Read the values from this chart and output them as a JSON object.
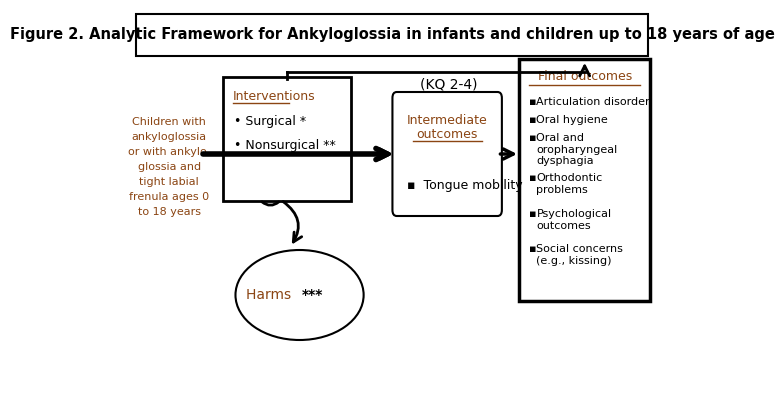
{
  "title": "Figure 2. Analytic Framework for Ankyloglossia in infants and children up to 18 years of age",
  "title_fontsize": 10.5,
  "bg_color": "#ffffff",
  "border_color": "#000000",
  "kq_label": "(KQ 2-4)",
  "left_label_lines": [
    "Children with",
    "ankyloglossia",
    "or with ankylo-",
    "glossia and",
    "tight labial",
    "frenula ages 0",
    "to 18 years"
  ],
  "left_label_color": "#8B4513",
  "interventions_title": "Interventions",
  "interventions_items": [
    "Surgical *",
    "Nonsurgical **"
  ],
  "intermediate_title_line1": "Intermediate",
  "intermediate_title_line2": "outcomes",
  "intermediate_items": [
    "Tongue mobility"
  ],
  "final_title": "Final outcomes",
  "final_items": [
    "Articulation disorder",
    "Oral hygiene",
    "Oral and\noropharyngeal\ndysphagia",
    "Orthodontic\nproblems",
    "Psychological\noutcomes",
    "Social concerns\n(e.g., kissing)"
  ],
  "harms_text": "Harms ",
  "harms_stars": "***",
  "harms_color": "#8B4513",
  "arrow_color": "#000000",
  "box_color": "#000000",
  "orange_color": "#8B4513",
  "text_color": "#000000",
  "bullet": "▪"
}
